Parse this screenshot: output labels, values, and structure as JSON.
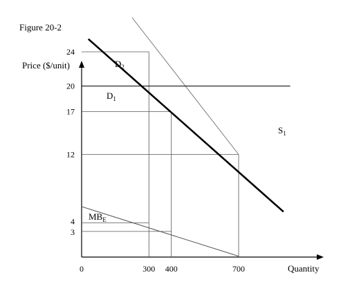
{
  "figure_title": "Figure 20-2",
  "chart_data": {
    "type": "line",
    "title": "Figure 20-2",
    "xlabel": "Quantity",
    "ylabel": "Price ($/unit)",
    "x_ticks": [
      "0",
      "300",
      "400",
      "700"
    ],
    "y_ticks": [
      "3",
      "4",
      "12",
      "17",
      "20",
      "24"
    ],
    "xlim": [
      0,
      840
    ],
    "ylim": [
      0,
      28
    ],
    "grid": false,
    "series": [
      {
        "name": "D2",
        "label": "D",
        "sub": "2",
        "x": [
          225,
          700
        ],
        "y": [
          28,
          12
        ]
      },
      {
        "name": "D1",
        "label": "D",
        "sub": "1",
        "x": [
          30,
          900
        ],
        "y": [
          25.5,
          5.3
        ]
      },
      {
        "name": "S1",
        "label": "S",
        "sub": "1",
        "x": [
          0,
          930
        ],
        "y": [
          20,
          20
        ]
      },
      {
        "name": "MBE",
        "label": "MB",
        "sub": "E",
        "x": [
          0,
          700
        ],
        "y": [
          5.9,
          0.1
        ]
      }
    ],
    "reference_lines": [
      {
        "point": [
          300,
          24
        ]
      },
      {
        "point": [
          400,
          17
        ]
      },
      {
        "point": [
          700,
          12
        ]
      },
      {
        "point": [
          300,
          4
        ]
      },
      {
        "point": [
          400,
          3
        ]
      }
    ]
  }
}
